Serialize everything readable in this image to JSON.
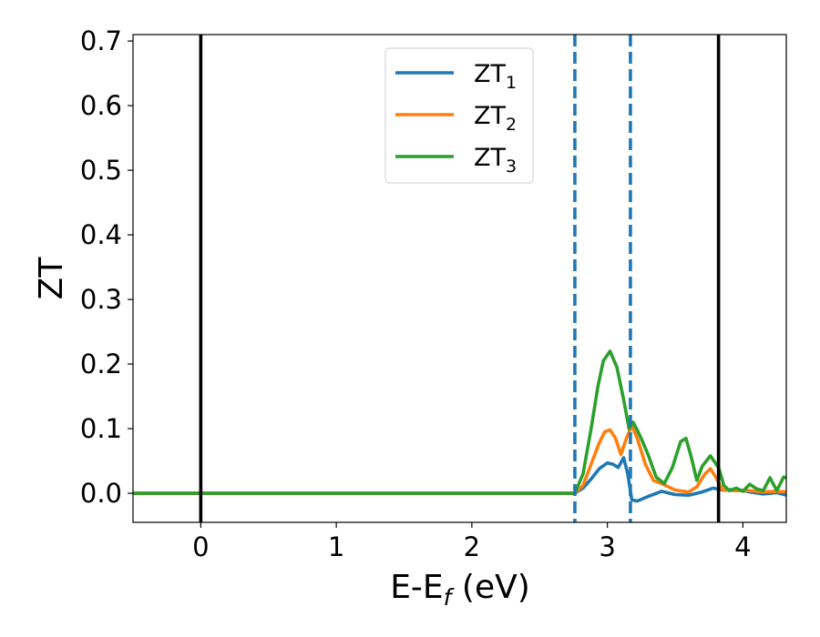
{
  "chart_data": {
    "type": "line",
    "xlabel": "E-E",
    "xlabel_sub": "f",
    "xlabel_unit": " (eV)",
    "ylabel": "ZT",
    "xlim": [
      -0.5,
      4.32
    ],
    "ylim": [
      -0.045,
      0.71
    ],
    "xticks": [
      {
        "value": 0,
        "label": "0"
      },
      {
        "value": 1,
        "label": "1"
      },
      {
        "value": 2,
        "label": "2"
      },
      {
        "value": 3,
        "label": "3"
      },
      {
        "value": 4,
        "label": "4"
      }
    ],
    "yticks": [
      {
        "value": 0.0,
        "label": "0.0"
      },
      {
        "value": 0.1,
        "label": "0.1"
      },
      {
        "value": 0.2,
        "label": "0.2"
      },
      {
        "value": 0.3,
        "label": "0.3"
      },
      {
        "value": 0.4,
        "label": "0.4"
      },
      {
        "value": 0.5,
        "label": "0.5"
      },
      {
        "value": 0.6,
        "label": "0.6"
      },
      {
        "value": 0.7,
        "label": "0.7"
      }
    ],
    "grid": false,
    "legend_position": "top-center",
    "vertical_lines": [
      {
        "x": 0.0,
        "style": "solid",
        "color": "#000000"
      },
      {
        "x": 2.76,
        "style": "dashed",
        "color": "#1f77b4"
      },
      {
        "x": 3.17,
        "style": "dashed",
        "color": "#1f77b4"
      },
      {
        "x": 3.82,
        "style": "solid",
        "color": "#000000"
      }
    ],
    "series": [
      {
        "name": "ZT",
        "subscript": "1",
        "color": "#1f77b4",
        "x": [
          -0.5,
          2.76,
          2.82,
          2.88,
          2.94,
          3.0,
          3.04,
          3.08,
          3.12,
          3.15,
          3.18,
          3.22,
          3.3,
          3.4,
          3.5,
          3.6,
          3.7,
          3.78,
          3.85,
          3.95,
          4.05,
          4.15,
          4.25,
          4.32
        ],
        "y": [
          0.0,
          0.0,
          0.008,
          0.022,
          0.038,
          0.047,
          0.045,
          0.04,
          0.055,
          0.03,
          -0.01,
          -0.012,
          -0.005,
          0.003,
          -0.002,
          -0.003,
          0.002,
          0.008,
          0.005,
          0.006,
          0.002,
          -0.001,
          0.001,
          -0.003
        ]
      },
      {
        "name": "ZT",
        "subscript": "2",
        "color": "#ff7f0e",
        "x": [
          -0.5,
          2.76,
          2.82,
          2.88,
          2.94,
          2.98,
          3.02,
          3.06,
          3.1,
          3.14,
          3.18,
          3.22,
          3.28,
          3.34,
          3.4,
          3.5,
          3.6,
          3.66,
          3.72,
          3.76,
          3.8,
          3.85,
          3.95,
          4.05,
          4.15,
          4.25,
          4.32
        ],
        "y": [
          0.0,
          0.0,
          0.012,
          0.045,
          0.078,
          0.095,
          0.098,
          0.085,
          0.06,
          0.085,
          0.105,
          0.085,
          0.045,
          0.02,
          0.015,
          0.005,
          0.002,
          0.01,
          0.03,
          0.038,
          0.025,
          0.005,
          0.004,
          0.004,
          0.002,
          0.003,
          0.002
        ]
      },
      {
        "name": "ZT",
        "subscript": "3",
        "color": "#2ca02c",
        "x": [
          -0.5,
          2.76,
          2.82,
          2.88,
          2.93,
          2.97,
          3.02,
          3.07,
          3.12,
          3.16,
          3.19,
          3.22,
          3.26,
          3.3,
          3.36,
          3.42,
          3.48,
          3.54,
          3.58,
          3.62,
          3.66,
          3.7,
          3.76,
          3.82,
          3.86,
          3.9,
          3.95,
          4.0,
          4.05,
          4.1,
          4.15,
          4.2,
          4.25,
          4.3,
          4.32
        ],
        "y": [
          0.0,
          0.0,
          0.03,
          0.1,
          0.165,
          0.205,
          0.22,
          0.195,
          0.145,
          0.1,
          0.11,
          0.098,
          0.08,
          0.06,
          0.025,
          0.015,
          0.04,
          0.08,
          0.085,
          0.055,
          0.02,
          0.042,
          0.058,
          0.04,
          0.012,
          0.004,
          0.008,
          0.003,
          0.014,
          0.007,
          0.004,
          0.024,
          0.004,
          0.025,
          0.024
        ]
      }
    ]
  }
}
